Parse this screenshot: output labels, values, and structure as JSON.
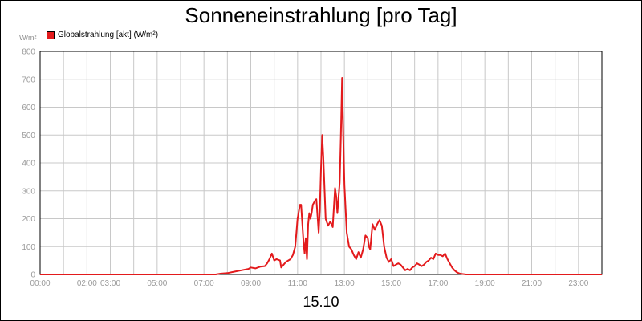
{
  "chart_data": {
    "type": "line",
    "title": "Sonneneinstrahlung [pro Tag]",
    "unit_label": "W/m²",
    "xlabel": "15.10",
    "ylabel": "",
    "legend_position": "top-left",
    "grid": true,
    "xlim": [
      0,
      24
    ],
    "ylim": [
      0,
      800
    ],
    "y_ticks": [
      0,
      100,
      200,
      300,
      400,
      500,
      600,
      700,
      800
    ],
    "x_ticks": [
      {
        "x": 0,
        "label": "00:00"
      },
      {
        "x": 2,
        "label": "02:00"
      },
      {
        "x": 3,
        "label": "03:00"
      },
      {
        "x": 5,
        "label": "05:00"
      },
      {
        "x": 7,
        "label": "07:00"
      },
      {
        "x": 9,
        "label": "09:00"
      },
      {
        "x": 11,
        "label": "11:00"
      },
      {
        "x": 13,
        "label": "13:00"
      },
      {
        "x": 15,
        "label": "15:00"
      },
      {
        "x": 17,
        "label": "17:00"
      },
      {
        "x": 19,
        "label": "19:00"
      },
      {
        "x": 21,
        "label": "21:00"
      },
      {
        "x": 23,
        "label": "23:00"
      }
    ],
    "series": [
      {
        "name": "Globalstrahlung [akt] (W/m²)",
        "color": "#e31a1c",
        "x": [
          0,
          7.5,
          7.7,
          8.0,
          8.3,
          8.6,
          8.9,
          9.0,
          9.2,
          9.4,
          9.6,
          9.7,
          9.8,
          9.9,
          10.0,
          10.1,
          10.25,
          10.3,
          10.5,
          10.7,
          10.8,
          10.9,
          11.0,
          11.1,
          11.15,
          11.25,
          11.3,
          11.35,
          11.4,
          11.45,
          11.5,
          11.55,
          11.6,
          11.65,
          11.75,
          11.8,
          11.9,
          11.95,
          12.0,
          12.05,
          12.1,
          12.2,
          12.3,
          12.4,
          12.5,
          12.6,
          12.65,
          12.7,
          12.8,
          12.85,
          12.9,
          12.95,
          13.0,
          13.1,
          13.2,
          13.3,
          13.4,
          13.5,
          13.6,
          13.7,
          13.8,
          13.9,
          14.0,
          14.05,
          14.1,
          14.2,
          14.3,
          14.4,
          14.5,
          14.6,
          14.7,
          14.8,
          14.9,
          15.0,
          15.1,
          15.2,
          15.3,
          15.4,
          15.5,
          15.6,
          15.7,
          15.8,
          15.9,
          16.0,
          16.1,
          16.2,
          16.3,
          16.4,
          16.5,
          16.6,
          16.7,
          16.8,
          16.9,
          17.0,
          17.1,
          17.2,
          17.3,
          17.4,
          17.5,
          17.6,
          17.7,
          17.8,
          17.9,
          18.0,
          18.2,
          24.0
        ],
        "values": [
          0,
          0,
          3,
          5,
          10,
          15,
          20,
          25,
          22,
          28,
          30,
          40,
          55,
          75,
          50,
          55,
          50,
          25,
          45,
          55,
          70,
          100,
          200,
          250,
          250,
          120,
          75,
          130,
          55,
          180,
          220,
          200,
          220,
          250,
          265,
          270,
          150,
          230,
          380,
          500,
          420,
          200,
          175,
          190,
          170,
          310,
          280,
          220,
          330,
          500,
          705,
          500,
          320,
          150,
          100,
          90,
          70,
          55,
          80,
          60,
          90,
          140,
          130,
          100,
          90,
          180,
          160,
          180,
          195,
          175,
          100,
          60,
          45,
          55,
          30,
          35,
          40,
          35,
          25,
          15,
          20,
          15,
          25,
          30,
          40,
          35,
          30,
          35,
          45,
          50,
          60,
          55,
          75,
          70,
          70,
          65,
          75,
          55,
          40,
          25,
          15,
          8,
          4,
          2,
          0,
          0
        ]
      }
    ]
  }
}
